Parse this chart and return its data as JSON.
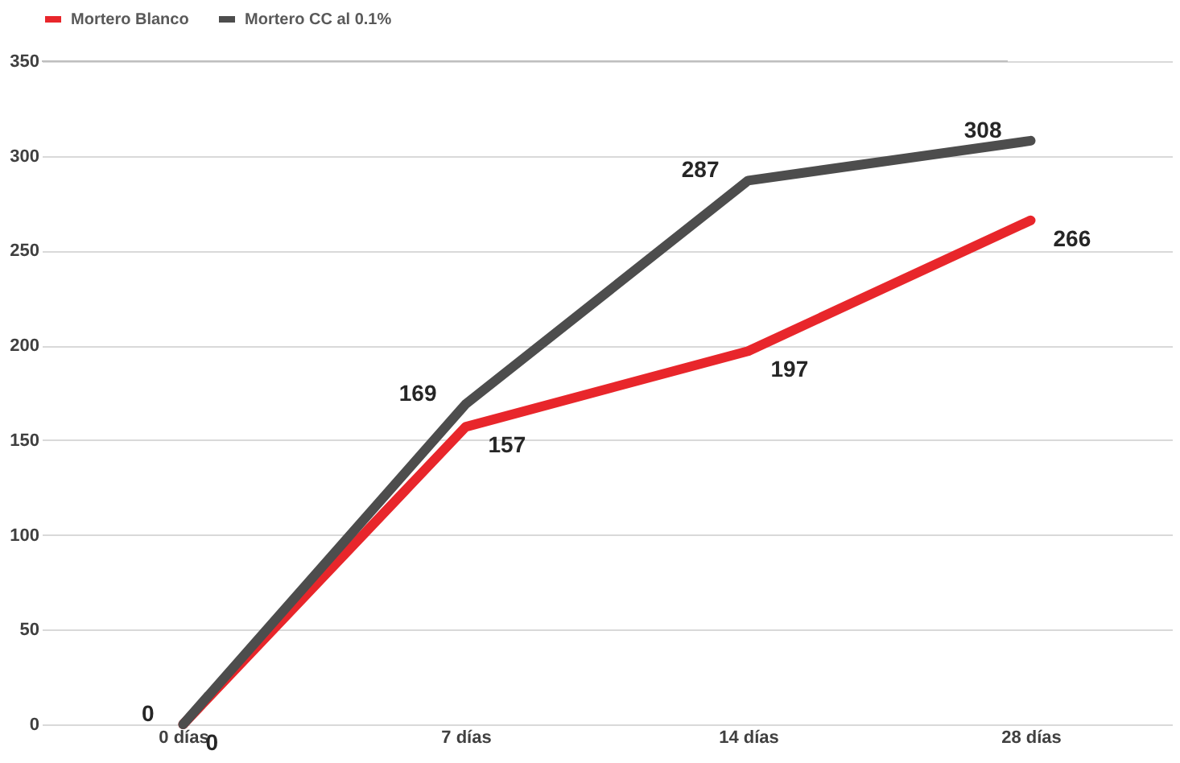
{
  "chart_data": {
    "type": "line",
    "categories": [
      "0 días",
      "7 días",
      "14 días",
      "28 días"
    ],
    "series": [
      {
        "name": "Mortero Blanco",
        "color": "#e8262b",
        "values": [
          0,
          157,
          197,
          266
        ]
      },
      {
        "name": "Mortero CC al 0.1%",
        "color": "#4d4d4d",
        "values": [
          0,
          169,
          287,
          308
        ]
      }
    ],
    "ylim": [
      0,
      350
    ],
    "yticks": [
      0,
      50,
      100,
      150,
      200,
      250,
      300,
      350
    ],
    "grid": true,
    "legend": "top",
    "data_labels": true,
    "marker": "none",
    "line_style": "solid"
  }
}
